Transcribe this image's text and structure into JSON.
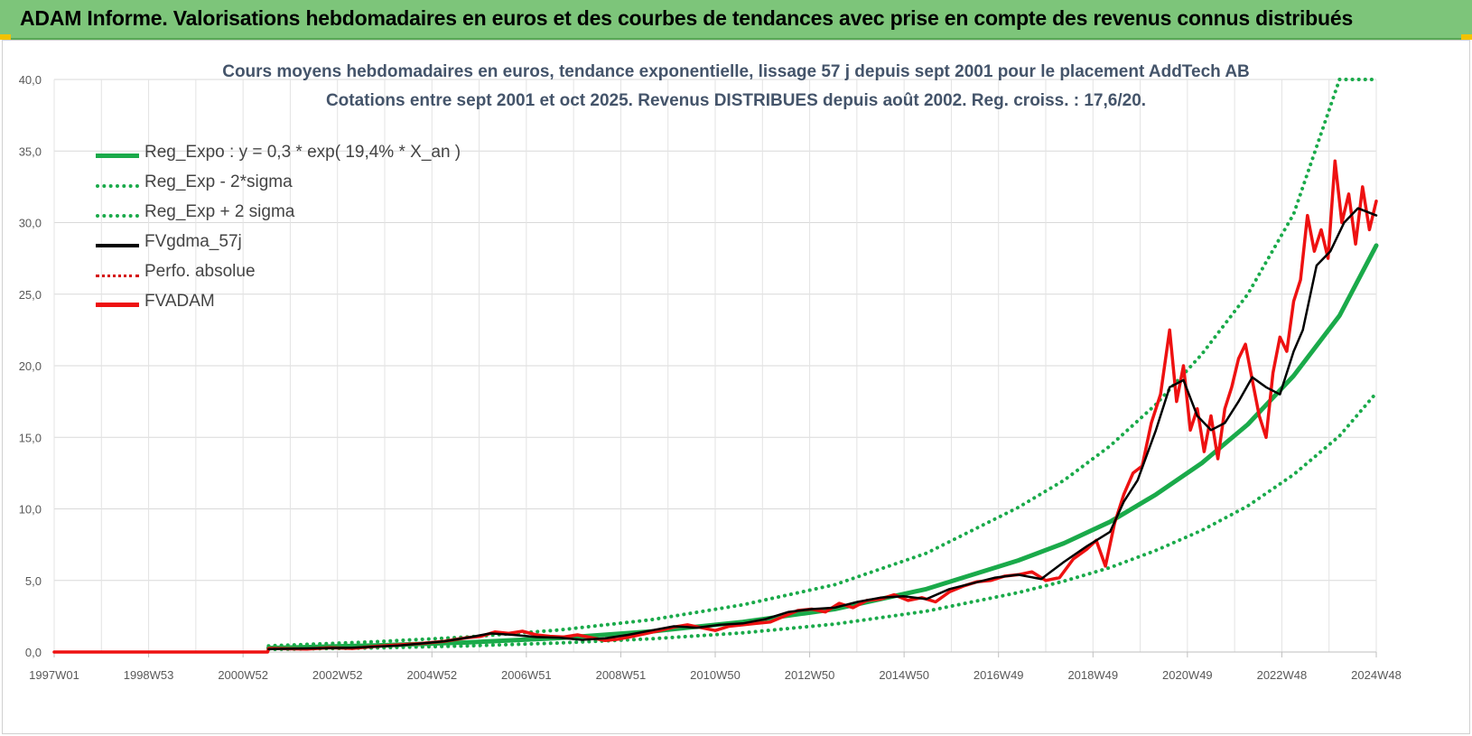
{
  "header": {
    "title": "ADAM Informe. Valorisations hebdomadaires en euros et des courbes de tendances avec prise en compte des revenus connus distribués"
  },
  "chart_data": {
    "type": "line",
    "title_line1": "Cours moyens hebdomadaires en euros, tendance exponentielle, lissage 57 j depuis sept 2001 pour le placement AddTech AB",
    "title_line2": "Cotations entre sept 2001 et oct 2025. Revenus DISTRIBUES depuis août 2002. Reg. croiss. : 17,6/20.",
    "xlabel": "",
    "ylabel": "",
    "x_range": [
      1997.0,
      2025.8
    ],
    "ylim": [
      0,
      40
    ],
    "y_ticks": [
      "0,0",
      "5,0",
      "10,0",
      "15,0",
      "20,0",
      "25,0",
      "30,0",
      "35,0",
      "40,0"
    ],
    "x_tick_labels": [
      "1997W01",
      "1998W53",
      "2000W52",
      "2002W52",
      "2004W52",
      "2006W51",
      "2008W51",
      "2010W50",
      "2012W50",
      "2014W50",
      "2016W49",
      "2018W49",
      "2020W49",
      "2022W48",
      "2024W48"
    ],
    "grid": true,
    "legend_position": "top-left",
    "series": [
      {
        "name": "Reg_Expo : y = 0,3 * exp( 19,4% *  X_an )",
        "color": "#1aaa4a",
        "style": "solid",
        "kind": "trend",
        "x": [
          2001.67,
          2004,
          2006,
          2008,
          2010,
          2012,
          2014,
          2016,
          2018,
          2019,
          2020,
          2021,
          2022,
          2023,
          2024,
          2025,
          2025.8
        ],
        "y": [
          0.28,
          0.46,
          0.67,
          0.98,
          1.43,
          2.1,
          3.0,
          4.4,
          6.4,
          7.6,
          9.1,
          11.0,
          13.2,
          15.9,
          19.3,
          23.5,
          28.4
        ]
      },
      {
        "name": "Reg_Exp - 2*sigma",
        "color": "#1aaa4a",
        "style": "dotted",
        "kind": "trend",
        "x": [
          2001.67,
          2004,
          2006,
          2008,
          2010,
          2012,
          2014,
          2016,
          2018,
          2019,
          2020,
          2021,
          2022,
          2023,
          2024,
          2025,
          2025.8
        ],
        "y": [
          0.18,
          0.29,
          0.43,
          0.63,
          0.92,
          1.34,
          1.95,
          2.85,
          4.15,
          4.95,
          5.9,
          7.1,
          8.5,
          10.2,
          12.4,
          15.1,
          18.1
        ]
      },
      {
        "name": "Reg_Exp + 2 sigma",
        "color": "#1aaa4a",
        "style": "dotted",
        "kind": "trend",
        "x": [
          2001.67,
          2004,
          2006,
          2008,
          2010,
          2012,
          2014,
          2016,
          2018,
          2019,
          2020,
          2021,
          2022,
          2023,
          2024,
          2025.0,
          2025.8
        ],
        "y": [
          0.43,
          0.72,
          1.05,
          1.54,
          2.25,
          3.3,
          4.7,
          6.9,
          10.1,
          12.0,
          14.4,
          17.3,
          20.8,
          25.0,
          30.6,
          40.0,
          40.0
        ]
      },
      {
        "name": "FVgdma_57j",
        "color": "#000000",
        "style": "solid",
        "kind": "price",
        "x": [
          2001.67,
          2002.5,
          2003.5,
          2004.5,
          2005.5,
          2006.0,
          2006.5,
          2007.0,
          2007.5,
          2008.0,
          2008.5,
          2009.0,
          2009.5,
          2010.0,
          2010.5,
          2011.0,
          2011.5,
          2012.0,
          2012.5,
          2013.0,
          2013.5,
          2014.0,
          2014.5,
          2015.0,
          2015.5,
          2016.0,
          2016.5,
          2017.0,
          2017.5,
          2018.0,
          2018.5,
          2019.0,
          2019.5,
          2020.0,
          2020.3,
          2020.6,
          2021.0,
          2021.3,
          2021.6,
          2021.9,
          2022.2,
          2022.5,
          2022.8,
          2023.1,
          2023.4,
          2023.7,
          2024.0,
          2024.2,
          2024.5,
          2024.8,
          2025.1,
          2025.4,
          2025.8
        ],
        "y": [
          0.2,
          0.25,
          0.3,
          0.45,
          0.75,
          1.0,
          1.3,
          1.2,
          1.05,
          1.0,
          0.85,
          0.95,
          1.2,
          1.5,
          1.8,
          1.7,
          1.9,
          2.0,
          2.3,
          2.8,
          3.0,
          3.1,
          3.5,
          3.8,
          3.9,
          3.7,
          4.4,
          4.8,
          5.2,
          5.4,
          5.1,
          6.3,
          7.4,
          8.4,
          10.5,
          12.0,
          15.5,
          18.5,
          19.0,
          16.5,
          15.5,
          16.0,
          17.5,
          19.2,
          18.5,
          18.0,
          21.0,
          22.5,
          27.0,
          28.0,
          30.0,
          31.0,
          30.5
        ]
      },
      {
        "name": "Perfo. absolue",
        "color": "#d40000",
        "style": "dotted",
        "kind": "price",
        "x": [],
        "y": []
      },
      {
        "name": "FVADAM",
        "color": "#ee1111",
        "style": "solid",
        "kind": "price",
        "x": [
          1997.0,
          2001.65,
          2001.67,
          2002.5,
          2003.0,
          2003.5,
          2004.0,
          2004.5,
          2005.0,
          2005.5,
          2006.0,
          2006.3,
          2006.6,
          2006.9,
          2007.2,
          2007.5,
          2007.8,
          2008.1,
          2008.4,
          2008.7,
          2009.0,
          2009.3,
          2009.6,
          2009.9,
          2010.2,
          2010.5,
          2010.8,
          2011.1,
          2011.4,
          2011.7,
          2012.0,
          2012.3,
          2012.6,
          2012.9,
          2013.2,
          2013.5,
          2013.8,
          2014.1,
          2014.4,
          2014.7,
          2015.0,
          2015.3,
          2015.6,
          2015.9,
          2016.2,
          2016.5,
          2016.8,
          2017.1,
          2017.4,
          2017.7,
          2018.0,
          2018.3,
          2018.6,
          2018.9,
          2019.2,
          2019.5,
          2019.7,
          2019.9,
          2020.1,
          2020.3,
          2020.5,
          2020.7,
          2020.9,
          2021.1,
          2021.3,
          2021.45,
          2021.6,
          2021.75,
          2021.9,
          2022.05,
          2022.2,
          2022.35,
          2022.5,
          2022.65,
          2022.8,
          2022.95,
          2023.1,
          2023.25,
          2023.4,
          2023.55,
          2023.7,
          2023.85,
          2024.0,
          2024.15,
          2024.3,
          2024.45,
          2024.6,
          2024.75,
          2024.9,
          2025.05,
          2025.2,
          2025.35,
          2025.5,
          2025.65,
          2025.8
        ],
        "y": [
          0.0,
          0.0,
          0.25,
          0.2,
          0.3,
          0.25,
          0.4,
          0.5,
          0.6,
          0.75,
          1.0,
          1.1,
          1.4,
          1.3,
          1.45,
          1.2,
          1.1,
          1.05,
          1.2,
          1.0,
          0.8,
          0.9,
          1.1,
          1.3,
          1.5,
          1.75,
          1.9,
          1.7,
          1.5,
          1.8,
          1.9,
          2.0,
          2.1,
          2.5,
          2.9,
          3.0,
          2.8,
          3.4,
          3.1,
          3.6,
          3.7,
          4.0,
          3.6,
          3.8,
          3.5,
          4.2,
          4.6,
          4.9,
          5.0,
          5.3,
          5.4,
          5.6,
          5.0,
          5.2,
          6.5,
          7.2,
          7.8,
          6.0,
          9.0,
          11.0,
          12.5,
          13.0,
          16.0,
          18.0,
          22.5,
          17.5,
          20.0,
          15.5,
          17.0,
          14.0,
          16.5,
          13.5,
          17.0,
          18.5,
          20.5,
          21.5,
          19.0,
          16.5,
          15.0,
          19.5,
          22.0,
          21.0,
          24.5,
          26.0,
          30.5,
          28.0,
          29.5,
          27.5,
          34.3,
          30.0,
          32.0,
          28.5,
          32.5,
          29.5,
          31.5
        ]
      }
    ]
  }
}
